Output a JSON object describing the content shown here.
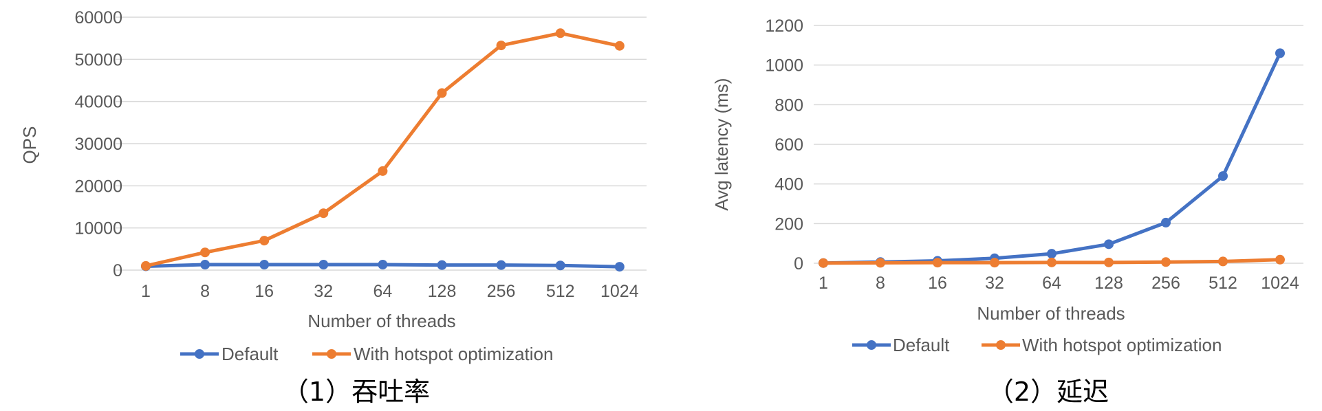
{
  "chart_data": [
    {
      "type": "line",
      "title": "",
      "caption": "（1）吞吐率",
      "xlabel": "Number of threads",
      "ylabel": "QPS",
      "categories": [
        "1",
        "8",
        "16",
        "32",
        "64",
        "128",
        "256",
        "512",
        "1024"
      ],
      "ylim": [
        0,
        60000
      ],
      "yticks": [
        "0",
        "10000",
        "20000",
        "30000",
        "40000",
        "50000",
        "60000"
      ],
      "grid": true,
      "legend_position": "bottom",
      "series": [
        {
          "name": "Default",
          "color": "#4472c4",
          "values": [
            900,
            1300,
            1300,
            1300,
            1300,
            1200,
            1200,
            1100,
            800
          ]
        },
        {
          "name": "With hotspot optimization",
          "color": "#ed7d31",
          "values": [
            1000,
            4200,
            7000,
            13500,
            23500,
            42000,
            53300,
            56200,
            53200
          ]
        }
      ]
    },
    {
      "type": "line",
      "title": "",
      "caption": "（2）延迟",
      "xlabel": "Number of threads",
      "ylabel": "Avg latency (ms)",
      "categories": [
        "1",
        "8",
        "16",
        "32",
        "64",
        "128",
        "256",
        "512",
        "1024"
      ],
      "ylim": [
        0,
        1200
      ],
      "yticks": [
        "0",
        "200",
        "400",
        "600",
        "800",
        "1000",
        "1200"
      ],
      "grid": true,
      "legend_position": "bottom",
      "series": [
        {
          "name": "Default",
          "color": "#4472c4",
          "values": [
            1,
            6,
            12,
            25,
            48,
            96,
            205,
            440,
            1060
          ]
        },
        {
          "name": "With hotspot optimization",
          "color": "#ed7d31",
          "values": [
            1,
            2,
            3,
            3,
            4,
            4,
            6,
            9,
            18
          ]
        }
      ]
    }
  ]
}
